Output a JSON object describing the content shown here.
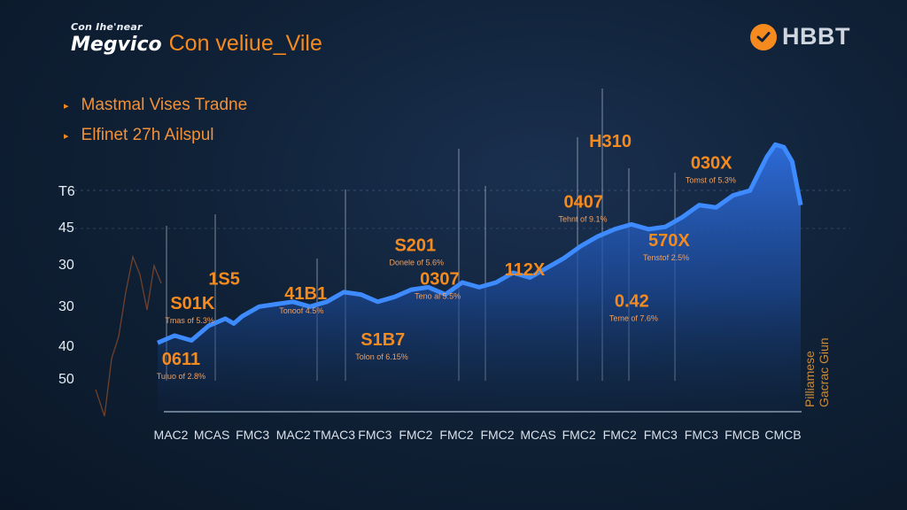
{
  "header": {
    "subtitle": "Con Ihe'near",
    "brand": "Megvico",
    "title": "Con veliue_Vile"
  },
  "logo": {
    "text": "HBBT",
    "icon": "check-icon",
    "color": "#f58a1f"
  },
  "legend": {
    "items": [
      {
        "label": "Mastmal Vises Tradne"
      },
      {
        "label": "Elfinet 27h Ailspul"
      }
    ]
  },
  "side_note": "Pilliamese Gacrac Giun",
  "colors": {
    "accent": "#f58a1f",
    "area": "#2f6fe0",
    "line": "#3d8bff",
    "bg": "#0f2036"
  },
  "chart_data": {
    "type": "area",
    "title": "Con veliue_Vile",
    "y_tick_labels": [
      "T6",
      "45",
      "30",
      "30",
      "40",
      "50"
    ],
    "x_tick_labels": [
      "MAC2",
      "MCAS",
      "FMC3",
      "MAC2",
      "TMAC3",
      "FMC3",
      "FMC2",
      "FMC2",
      "FMC2",
      "MCAS",
      "FMC2",
      "FMC2",
      "FMC3",
      "FMC3",
      "FMCB",
      "CMCB"
    ],
    "ylim": [
      0,
      100
    ],
    "series": [
      {
        "name": "Mastmal Vises Tradne",
        "x": [
          0,
          2,
          4,
          6,
          8,
          9,
          10,
          12,
          14,
          16,
          18,
          20,
          22,
          24,
          26,
          28,
          30,
          32,
          34,
          36,
          38,
          40,
          42,
          44,
          46,
          48,
          50,
          52,
          54,
          56,
          58,
          60,
          62,
          64,
          66,
          68,
          70,
          71,
          72,
          73,
          74,
          75,
          76
        ],
        "values": [
          23,
          26,
          24,
          30,
          33,
          31,
          34,
          38,
          39,
          40,
          38,
          40,
          44,
          43,
          40,
          42,
          45,
          46,
          43,
          48,
          46,
          48,
          52,
          50,
          54,
          58,
          63,
          67,
          70,
          72,
          70,
          71,
          75,
          80,
          79,
          84,
          86,
          93,
          100,
          105,
          104,
          98,
          80
        ]
      }
    ],
    "annotations": [
      {
        "value": "0611",
        "caption": "Tuluo of 2.8%",
        "x": 0.5,
        "y": 14,
        "align": "left"
      },
      {
        "value": "S01K",
        "caption": "Tmas of 5.3%",
        "x": 1.5,
        "y": 37,
        "align": "left"
      },
      {
        "value": "1S5",
        "caption": "",
        "x": 6,
        "y": 47,
        "align": "left"
      },
      {
        "value": "41B1",
        "caption": "Tonoof 4.5%",
        "x": 15,
        "y": 41,
        "align": "left"
      },
      {
        "value": "S1B7",
        "caption": "Tolon of 6.15%",
        "x": 24,
        "y": 22,
        "align": "left"
      },
      {
        "value": "S201",
        "caption": "Donele of 5.6%",
        "x": 28,
        "y": 61,
        "align": "left"
      },
      {
        "value": "0307",
        "caption": "Teno al 5.5%",
        "x": 31,
        "y": 47,
        "align": "left"
      },
      {
        "value": "112X",
        "caption": "",
        "x": 41,
        "y": 51,
        "align": "left"
      },
      {
        "value": "0407",
        "caption": "Tehnt of 9.1%",
        "x": 48,
        "y": 79,
        "align": "left"
      },
      {
        "value": "H310",
        "caption": "",
        "x": 51,
        "y": 104,
        "align": "left"
      },
      {
        "value": "0.42",
        "caption": "Teme of 7.6%",
        "x": 54,
        "y": 38,
        "align": "left"
      },
      {
        "value": "570X",
        "caption": "Tenstof 2.5%",
        "x": 58,
        "y": 63,
        "align": "left"
      },
      {
        "value": "030X",
        "caption": "Tomst of 5.3%",
        "x": 63,
        "y": 95,
        "align": "left"
      }
    ]
  }
}
